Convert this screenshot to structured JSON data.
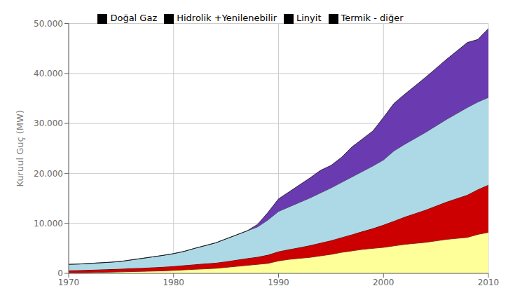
{
  "chart_data": {
    "type": "area",
    "stacked": true,
    "grid": true,
    "legend": "top",
    "ylabel": "Kuruul Guç (MW)",
    "x": [
      1970,
      1971,
      1972,
      1973,
      1974,
      1975,
      1976,
      1977,
      1978,
      1979,
      1980,
      1981,
      1982,
      1983,
      1984,
      1985,
      1986,
      1987,
      1988,
      1989,
      1990,
      1991,
      1992,
      1993,
      1994,
      1995,
      1996,
      1997,
      1998,
      1999,
      2000,
      2001,
      2002,
      2003,
      2004,
      2005,
      2006,
      2007,
      2008,
      2009,
      2010
    ],
    "xlim": [
      1970,
      2010
    ],
    "xticks": [
      1970,
      1980,
      1990,
      2000,
      2010
    ],
    "ylim": [
      0,
      50000
    ],
    "yticks": [
      0,
      {
        "value": 10000,
        "label": "10.000"
      },
      {
        "value": 20000,
        "label": "20.000"
      },
      {
        "value": 30000,
        "label": "30.000"
      },
      {
        "value": 40000,
        "label": "40.000"
      },
      {
        "value": 50000,
        "label": "50.000"
      }
    ],
    "series": [
      {
        "name": "Linyit",
        "color": "#FFFF99",
        "values": [
          100,
          100,
          150,
          200,
          250,
          300,
          350,
          400,
          450,
          500,
          600,
          700,
          800,
          900,
          1000,
          1200,
          1400,
          1600,
          1800,
          2000,
          2500,
          2800,
          3000,
          3200,
          3500,
          3800,
          4200,
          4500,
          4800,
          5000,
          5200,
          5500,
          5800,
          6000,
          6200,
          6500,
          6800,
          7000,
          7200,
          7800,
          8200
        ]
      },
      {
        "name": "Termik - diğer",
        "color": "#CC0000",
        "values": [
          500,
          520,
          540,
          560,
          580,
          600,
          650,
          700,
          750,
          800,
          850,
          900,
          1000,
          1050,
          1100,
          1200,
          1300,
          1400,
          1500,
          1700,
          1900,
          2000,
          2200,
          2400,
          2600,
          2800,
          3000,
          3300,
          3600,
          4000,
          4500,
          5000,
          5500,
          6000,
          6500,
          7000,
          7500,
          8000,
          8500,
          9000,
          9500
        ]
      },
      {
        "name": "Hidrolik +Yenilenebilir",
        "color": "#ADD8E6",
        "values": [
          1200,
          1250,
          1300,
          1350,
          1400,
          1500,
          1700,
          1900,
          2100,
          2300,
          2500,
          2800,
          3200,
          3600,
          4000,
          4500,
          5000,
          5500,
          6000,
          7000,
          8000,
          8500,
          9000,
          9500,
          10000,
          10500,
          11000,
          11500,
          12000,
          12500,
          13000,
          14000,
          14500,
          15000,
          15500,
          16000,
          16500,
          17000,
          17500,
          17500,
          17500
        ]
      },
      {
        "name": "Doğal Gaz",
        "color": "#6A3AB0",
        "values": [
          0,
          0,
          0,
          0,
          0,
          0,
          0,
          0,
          0,
          0,
          0,
          0,
          0,
          0,
          0,
          0,
          0,
          0,
          500,
          1500,
          2500,
          3000,
          3500,
          4000,
          4500,
          4500,
          5000,
          6000,
          6500,
          7000,
          8500,
          9500,
          10000,
          10500,
          11000,
          11500,
          12000,
          12500,
          13000,
          12500,
          13800
        ]
      }
    ]
  }
}
